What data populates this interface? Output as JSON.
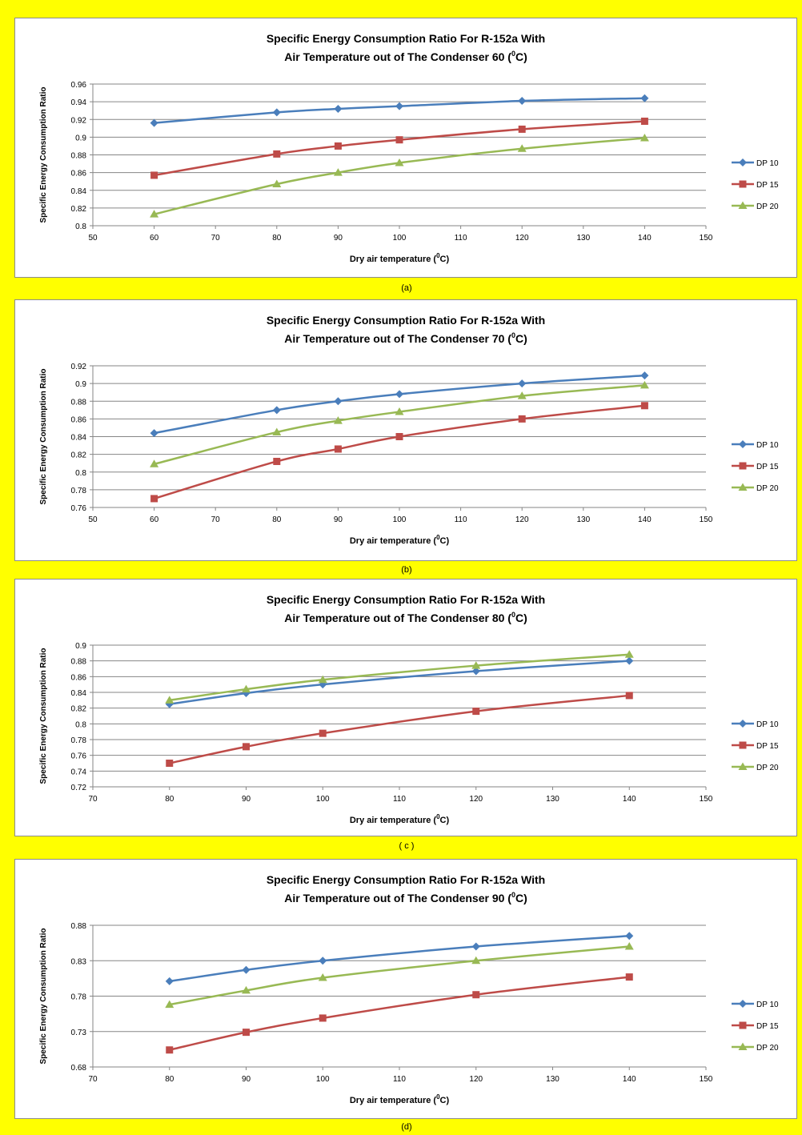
{
  "colors": {
    "background": "#ffff00",
    "series": [
      "#4a7ebb",
      "#be4b48",
      "#98b954"
    ],
    "grid": "#868686"
  },
  "markers": [
    "diamond",
    "square",
    "triangle"
  ],
  "chart_data": [
    {
      "type": "line",
      "title_line1": "Specific Energy Consumption Ratio For R-152a With",
      "title_line2_prefix": "Air Temperature out of The Condenser 60 (",
      "title_line2_sup": "0",
      "title_line2_suffix": "C)",
      "xlabel_prefix": "Dry air temperature (",
      "xlabel_sup": "0",
      "xlabel_suffix": "C)",
      "ylabel": "Specific Energy Consumption Ratio",
      "xlim": [
        50,
        150
      ],
      "xticks": [
        "50",
        "60",
        "70",
        "80",
        "90",
        "100",
        "110",
        "120",
        "130",
        "140",
        "150"
      ],
      "ylim": [
        0.8,
        0.96
      ],
      "yticks": [
        "0.8",
        "0.82",
        "0.84",
        "0.86",
        "0.88",
        "0.9",
        "0.92",
        "0.94",
        "0.96"
      ],
      "grid": true,
      "legend_position": "right",
      "caption": "(a)",
      "x": [
        60,
        80,
        90,
        100,
        120,
        140
      ],
      "series": [
        {
          "name": "DP 10",
          "values": [
            0.916,
            0.928,
            0.932,
            0.935,
            0.941,
            0.944
          ]
        },
        {
          "name": "DP 15",
          "values": [
            0.857,
            0.881,
            0.89,
            0.897,
            0.909,
            0.918
          ]
        },
        {
          "name": "DP 20",
          "values": [
            0.813,
            0.847,
            0.86,
            0.871,
            0.887,
            0.899
          ]
        }
      ]
    },
    {
      "type": "line",
      "title_line1": "Specific Energy Consumption Ratio For R-152a With",
      "title_line2_prefix": "Air Temperature out of The Condenser 70 (",
      "title_line2_sup": "0",
      "title_line2_suffix": "C)",
      "xlabel_prefix": "Dry air temperature (",
      "xlabel_sup": "0",
      "xlabel_suffix": "C)",
      "ylabel": "Specific Energy Consumption Ratio",
      "xlim": [
        50,
        150
      ],
      "xticks": [
        "50",
        "60",
        "70",
        "80",
        "90",
        "100",
        "110",
        "120",
        "130",
        "140",
        "150"
      ],
      "ylim": [
        0.76,
        0.92
      ],
      "yticks": [
        "0.76",
        "0.78",
        "0.8",
        "0.82",
        "0.84",
        "0.86",
        "0.88",
        "0.9",
        "0.92"
      ],
      "grid": true,
      "legend_position": "right",
      "caption": "(b)",
      "x": [
        60,
        80,
        90,
        100,
        120,
        140
      ],
      "series": [
        {
          "name": "DP 10",
          "values": [
            0.844,
            0.87,
            0.88,
            0.888,
            0.9,
            0.909
          ]
        },
        {
          "name": "DP 15",
          "values": [
            0.77,
            0.812,
            0.826,
            0.84,
            0.86,
            0.875
          ]
        },
        {
          "name": "DP 20",
          "values": [
            0.809,
            0.845,
            0.858,
            0.868,
            0.886,
            0.898
          ]
        }
      ]
    },
    {
      "type": "line",
      "title_line1": "Specific Energy Consumption Ratio For R-152a With",
      "title_line2_prefix": "Air Temperature out of The Condenser 80 (",
      "title_line2_sup": "0",
      "title_line2_suffix": "C)",
      "xlabel_prefix": "Dry air temperature (",
      "xlabel_sup": "0",
      "xlabel_suffix": "C)",
      "ylabel": "Specific Energy Consumption Ratio",
      "xlim": [
        70,
        150
      ],
      "xticks": [
        "70",
        "80",
        "90",
        "100",
        "110",
        "120",
        "130",
        "140",
        "150"
      ],
      "ylim": [
        0.72,
        0.9
      ],
      "yticks": [
        "0.72",
        "0.74",
        "0.76",
        "0.78",
        "0.8",
        "0.82",
        "0.84",
        "0.86",
        "0.88",
        "0.9"
      ],
      "grid": true,
      "legend_position": "right",
      "caption": "( c )",
      "x": [
        80,
        90,
        100,
        120,
        140
      ],
      "series": [
        {
          "name": "DP 10",
          "values": [
            0.825,
            0.839,
            0.85,
            0.867,
            0.88
          ]
        },
        {
          "name": "DP 15",
          "values": [
            0.75,
            0.771,
            0.788,
            0.816,
            0.836
          ]
        },
        {
          "name": "DP 20",
          "values": [
            0.83,
            0.844,
            0.856,
            0.874,
            0.888
          ]
        }
      ]
    },
    {
      "type": "line",
      "title_line1": "Specific Energy Consumption Ratio For R-152a With",
      "title_line2_prefix": "Air Temperature out of The Condenser 90 (",
      "title_line2_sup": "0",
      "title_line2_suffix": "C)",
      "xlabel_prefix": "Dry air temperature (",
      "xlabel_sup": "0",
      "xlabel_suffix": "C)",
      "ylabel": "Specific Energy Consumption Ratio",
      "xlim": [
        70,
        150
      ],
      "xticks": [
        "70",
        "80",
        "90",
        "100",
        "110",
        "120",
        "130",
        "140",
        "150"
      ],
      "ylim": [
        0.68,
        0.88
      ],
      "yticks": [
        "0.68",
        "0.73",
        "0.78",
        "0.83",
        "0.88"
      ],
      "grid": true,
      "legend_position": "right",
      "caption": "(d)",
      "x": [
        80,
        90,
        100,
        120,
        140
      ],
      "series": [
        {
          "name": "DP 10",
          "values": [
            0.801,
            0.817,
            0.83,
            0.85,
            0.865
          ]
        },
        {
          "name": "DP 15",
          "values": [
            0.704,
            0.729,
            0.749,
            0.782,
            0.807
          ]
        },
        {
          "name": "DP 20",
          "values": [
            0.768,
            0.788,
            0.806,
            0.83,
            0.85
          ]
        }
      ]
    }
  ]
}
